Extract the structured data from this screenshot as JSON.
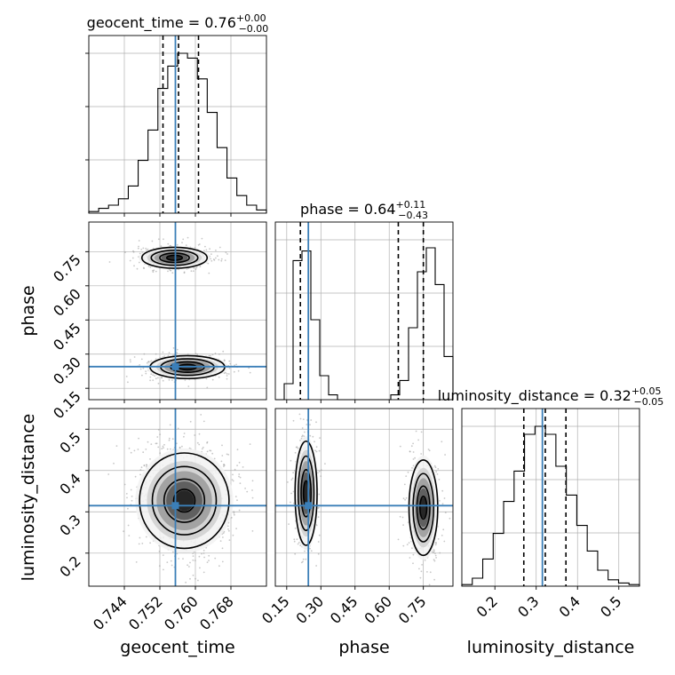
{
  "chart_data": {
    "type": "corner",
    "grid": true,
    "truth_color": "#3b7fb8",
    "params": [
      {
        "name": "geocent_time",
        "title_main": "geocent_time = 0.76",
        "title_sup": "+0.00",
        "title_sub": "−0.00",
        "range": [
          0.736,
          0.776
        ],
        "ticks": [
          {
            "value": 0.744,
            "label": "0.744"
          },
          {
            "value": 0.752,
            "label": "0.752"
          },
          {
            "value": 0.76,
            "label": "0.760"
          },
          {
            "value": 0.768,
            "label": "0.768"
          }
        ],
        "truth": 0.7555,
        "quantiles": [
          0.7527,
          0.7562,
          0.7607
        ],
        "hist": [
          0.01,
          0.03,
          0.05,
          0.09,
          0.17,
          0.33,
          0.52,
          0.78,
          0.92,
          1.0,
          0.97,
          0.84,
          0.63,
          0.41,
          0.22,
          0.11,
          0.05,
          0.02
        ]
      },
      {
        "name": "phase",
        "title_main": "phase = 0.64",
        "title_sup": "+0.11",
        "title_sub": "−0.43",
        "range": [
          0.1,
          0.88
        ],
        "ticks": [
          {
            "value": 0.15,
            "label": "0.15"
          },
          {
            "value": 0.3,
            "label": "0.30"
          },
          {
            "value": 0.45,
            "label": "0.45"
          },
          {
            "value": 0.6,
            "label": "0.60"
          },
          {
            "value": 0.75,
            "label": "0.75"
          }
        ],
        "truth": 0.245,
        "quantiles": [
          0.21,
          0.64,
          0.75
        ],
        "hist": [
          0.0,
          0.1,
          0.87,
          0.93,
          0.5,
          0.15,
          0.03,
          0.0,
          0.0,
          0.0,
          0.0,
          0.0,
          0.0,
          0.03,
          0.12,
          0.45,
          0.8,
          0.95,
          0.72,
          0.27
        ]
      },
      {
        "name": "luminosity_distance",
        "title_main": "luminosity_distance = 0.32",
        "title_sup": "+0.05",
        "title_sub": "−0.05",
        "range": [
          0.12,
          0.55
        ],
        "ticks": [
          {
            "value": 0.2,
            "label": "0.2"
          },
          {
            "value": 0.3,
            "label": "0.3"
          },
          {
            "value": 0.4,
            "label": "0.4"
          },
          {
            "value": 0.5,
            "label": "0.5"
          }
        ],
        "truth": 0.315,
        "quantiles": [
          0.27,
          0.322,
          0.372
        ],
        "hist": [
          0.01,
          0.05,
          0.17,
          0.33,
          0.53,
          0.72,
          0.95,
          1.0,
          0.95,
          0.75,
          0.57,
          0.38,
          0.22,
          0.1,
          0.04,
          0.02,
          0.01
        ]
      }
    ],
    "pairs": [
      {
        "x": "geocent_time",
        "y": "phase",
        "truth": [
          0.7555,
          0.245
        ],
        "blobs": [
          {
            "cx": 0.7553,
            "cy": 0.723,
            "sx": 0.0035,
            "sy": 0.022,
            "n": 520,
            "levels": [
              1.0,
              0.68,
              0.45,
              0.22
            ]
          },
          {
            "cx": 0.7582,
            "cy": 0.243,
            "sx": 0.004,
            "sy": 0.024,
            "n": 560,
            "levels": [
              1.0,
              0.68,
              0.45,
              0.22
            ]
          }
        ]
      },
      {
        "x": "geocent_time",
        "y": "luminosity_distance",
        "truth": [
          0.7555,
          0.315
        ],
        "blobs": [
          {
            "cx": 0.7575,
            "cy": 0.327,
            "sx": 0.0048,
            "sy": 0.055,
            "n": 900,
            "levels": [
              1.0,
              0.68,
              0.45,
              0.22
            ]
          }
        ]
      },
      {
        "x": "phase",
        "y": "luminosity_distance",
        "truth": [
          0.245,
          0.315
        ],
        "blobs": [
          {
            "cx": 0.235,
            "cy": 0.345,
            "sx": 0.023,
            "sy": 0.06,
            "n": 460,
            "levels": [
              1.0,
              0.68,
              0.45,
              0.22
            ]
          },
          {
            "cx": 0.75,
            "cy": 0.31,
            "sx": 0.03,
            "sy": 0.055,
            "n": 460,
            "levels": [
              1.0,
              0.68,
              0.45,
              0.22
            ]
          }
        ]
      }
    ]
  }
}
